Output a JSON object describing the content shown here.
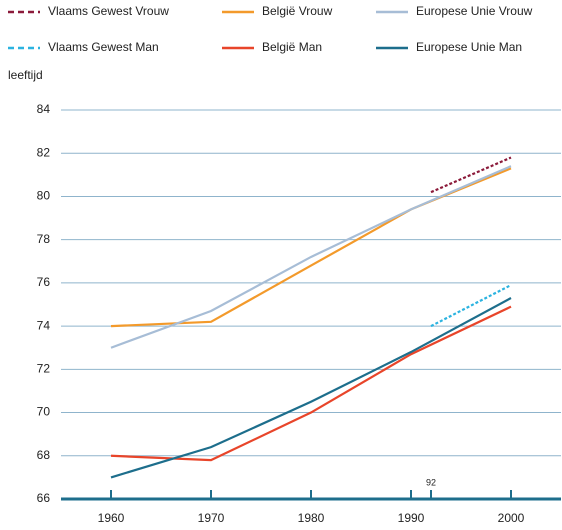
{
  "chart_data": {
    "type": "line",
    "y_label": "leeftijd",
    "xlim": [
      1955,
      2005
    ],
    "ylim": [
      66,
      84
    ],
    "xticks": [
      1960,
      1970,
      1980,
      1990,
      {
        "value": 1992,
        "label": "92"
      },
      2000
    ],
    "yticks": [
      66,
      68,
      70,
      72,
      74,
      76,
      78,
      80,
      82,
      84
    ],
    "grid": true,
    "series": [
      {
        "name": "Vlaams Gewest Vrouw",
        "color": "#8b1a3a",
        "style": "dotted",
        "x": [
          1992,
          2000
        ],
        "values": [
          80.2,
          81.8
        ]
      },
      {
        "name": "België Vrouw",
        "color": "#f39a2b",
        "style": "solid",
        "x": [
          1960,
          1970,
          1980,
          1990,
          2000
        ],
        "values": [
          74.0,
          74.2,
          76.8,
          79.4,
          81.3
        ]
      },
      {
        "name": "Europese Unie Vrouw",
        "color": "#a7bdd6",
        "style": "solid",
        "x": [
          1960,
          1970,
          1980,
          1990,
          2000
        ],
        "values": [
          73.0,
          74.7,
          77.2,
          79.4,
          81.4
        ]
      },
      {
        "name": "Vlaams Gewest Man",
        "color": "#2bb3e0",
        "style": "dotted",
        "x": [
          1992,
          2000
        ],
        "values": [
          74.0,
          75.9
        ]
      },
      {
        "name": "België Man",
        "color": "#e8452a",
        "style": "solid",
        "x": [
          1960,
          1970,
          1980,
          1990,
          2000
        ],
        "values": [
          68.0,
          67.8,
          70.0,
          72.7,
          74.9
        ]
      },
      {
        "name": "Europese Unie Man",
        "color": "#1d6e8c",
        "style": "solid",
        "x": [
          1960,
          1970,
          1980,
          1990,
          2000
        ],
        "values": [
          67.0,
          68.4,
          70.5,
          72.8,
          75.3
        ]
      }
    ]
  }
}
